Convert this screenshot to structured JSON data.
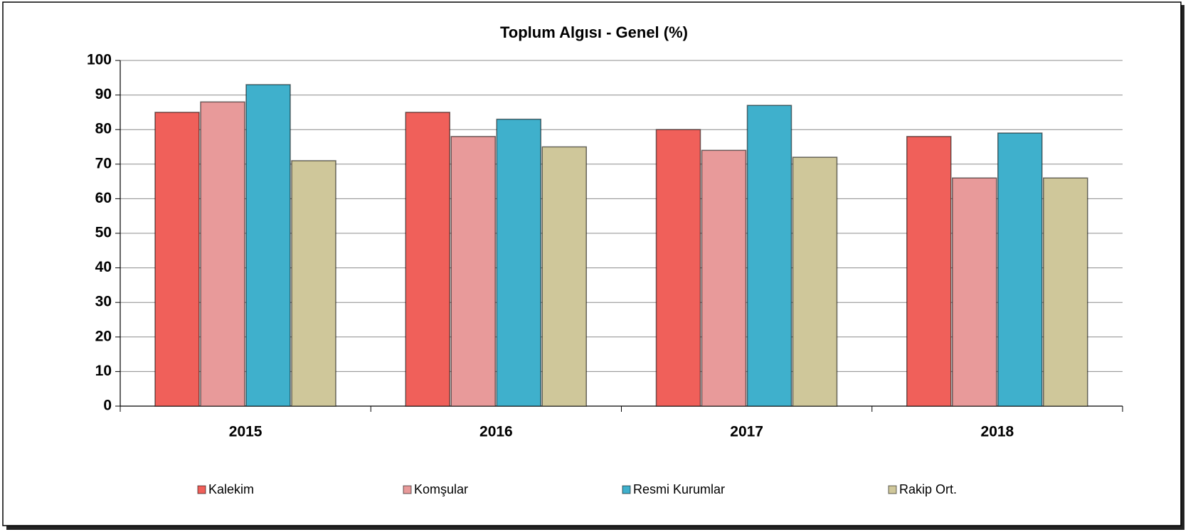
{
  "chart_data": {
    "type": "bar",
    "title": "Toplum Algısı - Genel (%)",
    "categories": [
      "2015",
      "2016",
      "2017",
      "2018"
    ],
    "series": [
      {
        "name": "Kalekim",
        "color": "#f0605a",
        "values": [
          85,
          85,
          80,
          78
        ]
      },
      {
        "name": "Komşular",
        "color": "#e89a9a",
        "values": [
          88,
          78,
          74,
          66
        ]
      },
      {
        "name": "Resmi Kurumlar",
        "color": "#3fb0cc",
        "values": [
          93,
          83,
          87,
          79
        ]
      },
      {
        "name": "Rakip Ort.",
        "color": "#cfc79a",
        "values": [
          71,
          75,
          72,
          66
        ]
      }
    ],
    "ylim": [
      0,
      100
    ],
    "yticks": [
      0,
      10,
      20,
      30,
      40,
      50,
      60,
      70,
      80,
      90,
      100
    ],
    "grid": true,
    "legend": "bottom"
  }
}
